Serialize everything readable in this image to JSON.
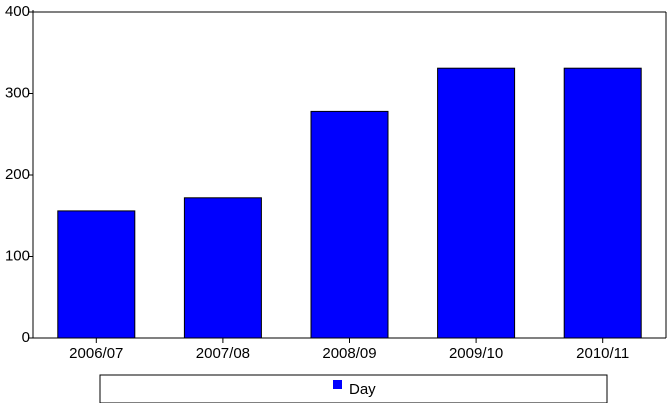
{
  "colors": {
    "bar_fill": "#0000ff",
    "bar_stroke": "#000000",
    "axis": "#000000",
    "background": "#ffffff"
  },
  "chart_data": {
    "type": "bar",
    "categories": [
      "2006/07",
      "2007/08",
      "2008/09",
      "2009/10",
      "2010/11"
    ],
    "series": [
      {
        "name": "Day",
        "values": [
          156,
          172,
          278,
          331,
          331
        ]
      }
    ],
    "y_ticks": [
      0,
      100,
      200,
      300,
      400
    ],
    "ylim": [
      0,
      400
    ],
    "title": "",
    "xlabel": "",
    "ylabel": "",
    "grid": false,
    "legend_position": "bottom"
  }
}
